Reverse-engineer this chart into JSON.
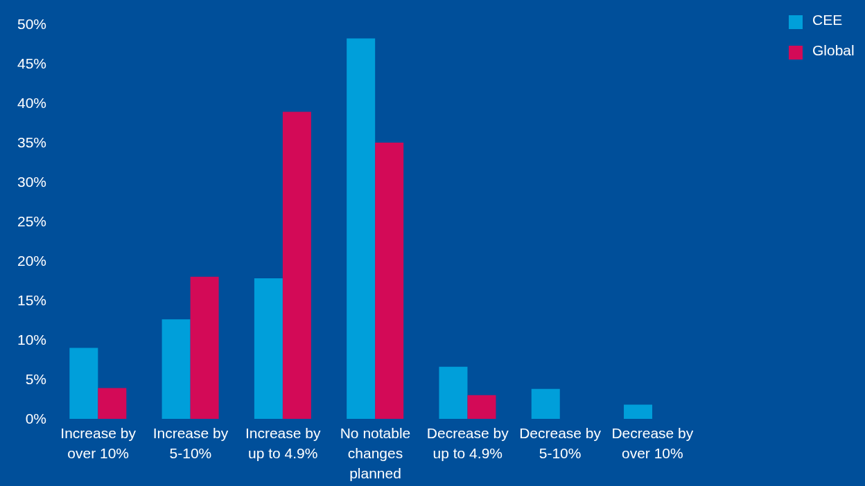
{
  "chart_data": {
    "type": "bar",
    "categories": [
      "Increase by over 10%",
      "Increase by 5-10%",
      "Increase by up to 4.9%",
      "No notable changes planned",
      "Decrease by up to 4.9%",
      "Decrease by 5-10%",
      "Decrease by over 10%"
    ],
    "series": [
      {
        "name": "CEE",
        "color": "#009fda",
        "values": [
          9,
          12.6,
          17.8,
          48.2,
          6.6,
          3.8,
          1.8
        ]
      },
      {
        "name": "Global",
        "color": "#d30a57",
        "values": [
          3.9,
          18,
          38.9,
          35,
          3,
          0,
          0
        ]
      }
    ],
    "ylim": [
      0,
      50
    ],
    "yticks": [
      {
        "value": 0,
        "label": "0%"
      },
      {
        "value": 5,
        "label": "5%"
      },
      {
        "value": 10,
        "label": "10%"
      },
      {
        "value": 15,
        "label": "15%"
      },
      {
        "value": 20,
        "label": "20%"
      },
      {
        "value": 25,
        "label": "25%"
      },
      {
        "value": 30,
        "label": "30%"
      },
      {
        "value": 35,
        "label": "35%"
      },
      {
        "value": 40,
        "label": "40%"
      },
      {
        "value": 45,
        "label": "45%"
      },
      {
        "value": 50,
        "label": "50%"
      }
    ],
    "grid": false,
    "legend": "top right"
  }
}
